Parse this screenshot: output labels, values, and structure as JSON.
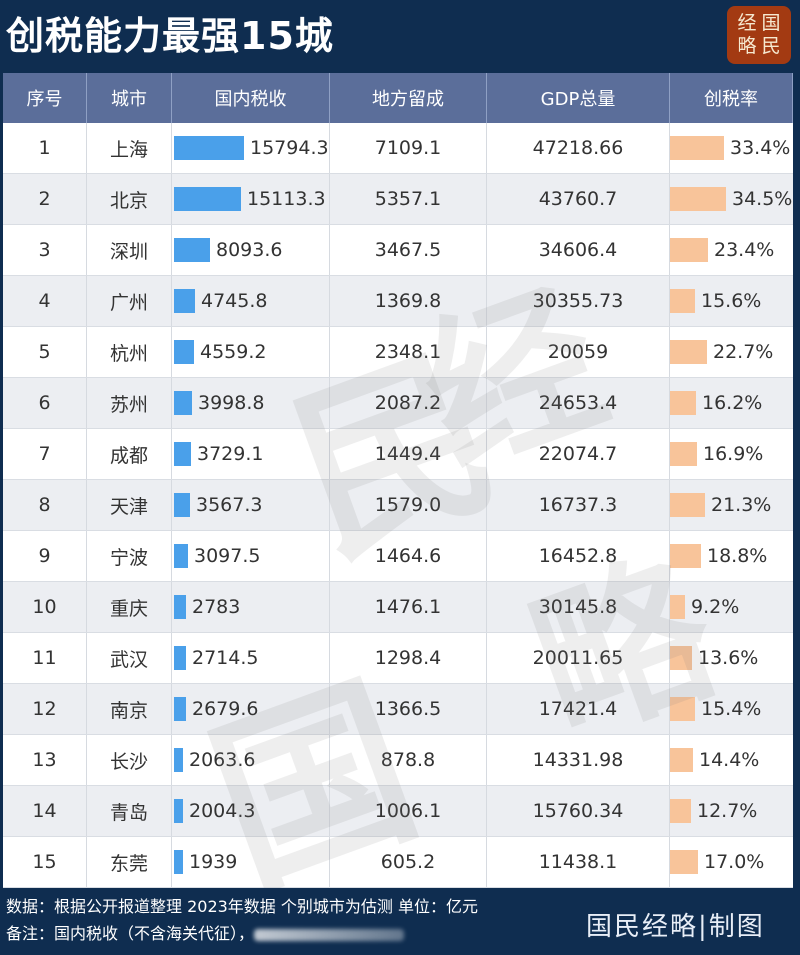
{
  "header": {
    "title": "创税能力最强15城",
    "logo_chars": [
      "经",
      "国",
      "略",
      "民"
    ]
  },
  "table": {
    "columns": [
      "序号",
      "城市",
      "国内税收",
      "地方留成",
      "GDP总量",
      "创税率"
    ],
    "rows": [
      {
        "rank": "1",
        "city": "上海",
        "tax": "15794.3",
        "local": "7109.1",
        "gdp": "47218.66",
        "rate": "33.4%"
      },
      {
        "rank": "2",
        "city": "北京",
        "tax": "15113.3",
        "local": "5357.1",
        "gdp": "43760.7",
        "rate": "34.5%"
      },
      {
        "rank": "3",
        "city": "深圳",
        "tax": "8093.6",
        "local": "3467.5",
        "gdp": "34606.4",
        "rate": "23.4%"
      },
      {
        "rank": "4",
        "city": "广州",
        "tax": "4745.8",
        "local": "1369.8",
        "gdp": "30355.73",
        "rate": "15.6%"
      },
      {
        "rank": "5",
        "city": "杭州",
        "tax": "4559.2",
        "local": "2348.1",
        "gdp": "20059",
        "rate": "22.7%"
      },
      {
        "rank": "6",
        "city": "苏州",
        "tax": "3998.8",
        "local": "2087.2",
        "gdp": "24653.4",
        "rate": "16.2%"
      },
      {
        "rank": "7",
        "city": "成都",
        "tax": "3729.1",
        "local": "1449.4",
        "gdp": "22074.7",
        "rate": "16.9%"
      },
      {
        "rank": "8",
        "city": "天津",
        "tax": "3567.3",
        "local": "1579.0",
        "gdp": "16737.3",
        "rate": "21.3%"
      },
      {
        "rank": "9",
        "city": "宁波",
        "tax": "3097.5",
        "local": "1464.6",
        "gdp": "16452.8",
        "rate": "18.8%"
      },
      {
        "rank": "10",
        "city": "重庆",
        "tax": "2783",
        "local": "1476.1",
        "gdp": "30145.8",
        "rate": "9.2%"
      },
      {
        "rank": "11",
        "city": "武汉",
        "tax": "2714.5",
        "local": "1298.4",
        "gdp": "20011.65",
        "rate": "13.6%"
      },
      {
        "rank": "12",
        "city": "南京",
        "tax": "2679.6",
        "local": "1366.5",
        "gdp": "17421.4",
        "rate": "15.4%"
      },
      {
        "rank": "13",
        "city": "长沙",
        "tax": "2063.6",
        "local": "878.8",
        "gdp": "14331.98",
        "rate": "14.4%"
      },
      {
        "rank": "14",
        "city": "青岛",
        "tax": "2004.3",
        "local": "1006.1",
        "gdp": "15760.34",
        "rate": "12.7%"
      },
      {
        "rank": "15",
        "city": "东莞",
        "tax": "1939",
        "local": "605.2",
        "gdp": "11438.1",
        "rate": "17.0%"
      }
    ]
  },
  "footer": {
    "source": "数据：根据公开报道整理 2023年数据 个别城市为估测  单位：亿元",
    "note": "备注：国内税收（不含海关代征），",
    "brand": "国民经略|制图"
  },
  "watermark": {
    "chars": [
      "国",
      "民",
      "经",
      "略"
    ]
  },
  "colors": {
    "background": "#0f2d50",
    "header_row": "#5b6e9a",
    "tax_bar": "#4aa0ea",
    "rate_bar": "#f8c49a",
    "logo": "#a33a12"
  },
  "chart_data": {
    "type": "table",
    "title": "创税能力最强15城",
    "columns": [
      "序号",
      "城市",
      "国内税收",
      "地方留成",
      "GDP总量",
      "创税率"
    ],
    "categories": [
      "上海",
      "北京",
      "深圳",
      "广州",
      "杭州",
      "苏州",
      "成都",
      "天津",
      "宁波",
      "重庆",
      "武汉",
      "南京",
      "长沙",
      "青岛",
      "东莞"
    ],
    "series": [
      {
        "name": "国内税收",
        "values": [
          15794.3,
          15113.3,
          8093.6,
          4745.8,
          4559.2,
          3998.8,
          3729.1,
          3567.3,
          3097.5,
          2783,
          2714.5,
          2679.6,
          2063.6,
          2004.3,
          1939
        ],
        "display": "bar"
      },
      {
        "name": "地方留成",
        "values": [
          7109.1,
          5357.1,
          3467.5,
          1369.8,
          2348.1,
          2087.2,
          1449.4,
          1579.0,
          1464.6,
          1476.1,
          1298.4,
          1366.5,
          878.8,
          1006.1,
          605.2
        ]
      },
      {
        "name": "GDP总量",
        "values": [
          47218.66,
          43760.7,
          34606.4,
          30355.73,
          20059,
          24653.4,
          22074.7,
          16737.3,
          16452.8,
          30145.8,
          20011.65,
          17421.4,
          14331.98,
          15760.34,
          11438.1
        ]
      },
      {
        "name": "创税率",
        "unit": "%",
        "values": [
          33.4,
          34.5,
          23.4,
          15.6,
          22.7,
          16.2,
          16.9,
          21.3,
          18.8,
          9.2,
          13.6,
          15.4,
          14.4,
          12.7,
          17.0
        ],
        "display": "bar"
      }
    ],
    "unit": "亿元",
    "note": "数据：根据公开报道整理 2023年数据 个别城市为估测"
  }
}
